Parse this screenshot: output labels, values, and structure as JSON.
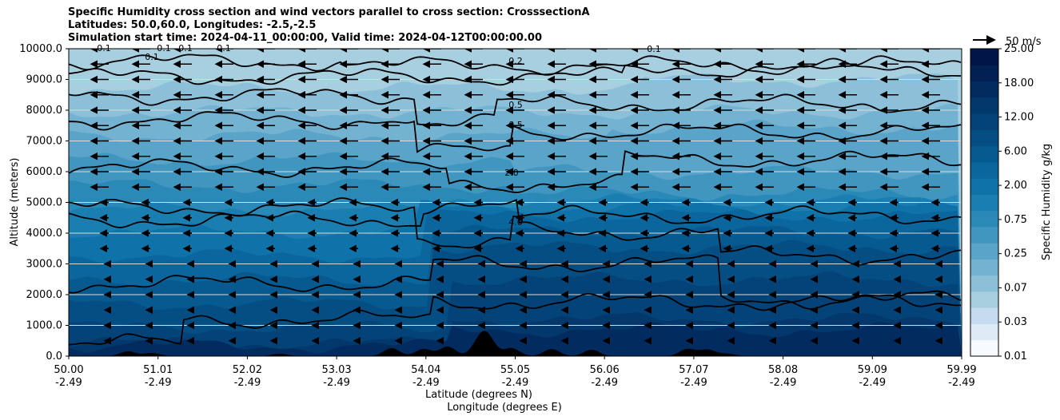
{
  "title_lines": [
    "Specific Humidity cross section and wind vectors parallel to cross section: CrosssectionA",
    "Latitudes: 50.0,60.0, Longitudes: -2.5,-2.5",
    "Simulation start time: 2024-04-11_00:00:00, Valid time: 2024-04-12T00:00:00.00"
  ],
  "chart_data": {
    "type": "heatmap",
    "ylabel": "Altitude (meters)",
    "xlabel_1": "Latitude (degrees N)",
    "xlabel_2": "Longitude (degrees E)",
    "ylim": [
      0,
      10000
    ],
    "yticks": [
      "0.0",
      "1000.0",
      "2000.0",
      "3000.0",
      "4000.0",
      "5000.0",
      "6000.0",
      "7000.0",
      "8000.0",
      "9000.0",
      "10000.0"
    ],
    "xticks": [
      {
        "lat": "50.00",
        "lon": "-2.49"
      },
      {
        "lat": "51.01",
        "lon": "-2.49"
      },
      {
        "lat": "52.02",
        "lon": "-2.49"
      },
      {
        "lat": "53.03",
        "lon": "-2.49"
      },
      {
        "lat": "54.04",
        "lon": "-2.49"
      },
      {
        "lat": "55.05",
        "lon": "-2.49"
      },
      {
        "lat": "56.06",
        "lon": "-2.49"
      },
      {
        "lat": "57.07",
        "lon": "-2.49"
      },
      {
        "lat": "58.08",
        "lon": "-2.49"
      },
      {
        "lat": "59.09",
        "lon": "-2.49"
      },
      {
        "lat": "59.99",
        "lon": "-2.49"
      }
    ],
    "grid": true,
    "colorbar": {
      "label": "Specific Humidity g/kg",
      "ticks": [
        "0.01",
        "0.03",
        "0.07",
        "0.25",
        "0.75",
        "2.00",
        "6.00",
        "12.00",
        "18.00",
        "25.00"
      ],
      "palette": [
        "#f7fbff",
        "#deebf7",
        "#c6dbef",
        "#a7cfe0",
        "#8cc0d8",
        "#73b2d1",
        "#5aa3c9",
        "#4196c0",
        "#2b89b8",
        "#1a7fb0",
        "#0f72a8",
        "#0a669c",
        "#075a90",
        "#054e84",
        "#044378",
        "#03386c",
        "#022c60",
        "#022054",
        "#011548"
      ]
    },
    "quiver_key": "50 m/s",
    "contour_labels": [
      "0.1",
      "0.1",
      "0.1",
      "0.1",
      "0.1",
      "0.1",
      "0.2",
      "0.5",
      "0.5",
      "2.0",
      "4.0"
    ],
    "contour_levels": [
      0.1,
      0.2,
      0.5,
      1.0,
      2.0,
      4.0
    ],
    "wind": {
      "direction": "negative-x",
      "approx_speed_ms": 12
    }
  }
}
